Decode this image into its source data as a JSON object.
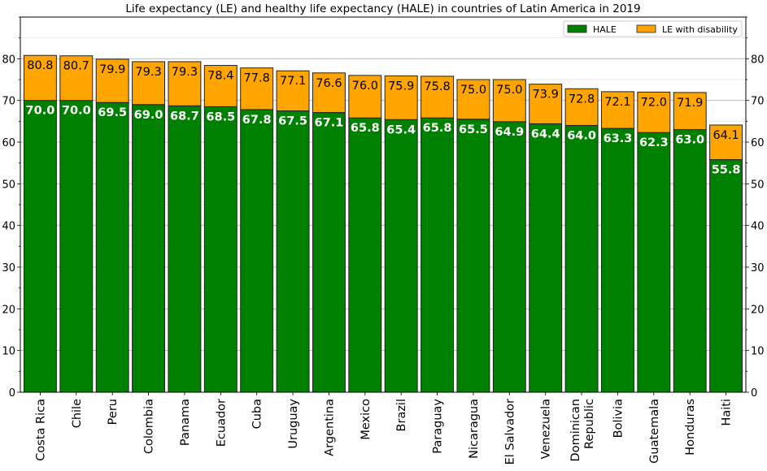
{
  "chart_data": {
    "type": "bar",
    "stacked": true,
    "title": "Life expectancy (LE) and healthy life expectancy (HALE) in countries of Latin America in 2019",
    "xlabel": "",
    "ylabel": "",
    "ylim": [
      0,
      90
    ],
    "yticks": [
      0,
      10,
      20,
      30,
      40,
      50,
      60,
      70,
      80
    ],
    "yticks_minor_step": 5,
    "grid": true,
    "legend": {
      "placement": "top-right",
      "entries": [
        "HALE",
        "LE with disability"
      ]
    },
    "categories": [
      "Costa Rica",
      "Chile",
      "Peru",
      "Colombia",
      "Panama",
      "Ecuador",
      "Cuba",
      "Uruguay",
      "Argentina",
      "Mexico",
      "Brazil",
      "Paraguay",
      "Nicaragua",
      "El Salvador",
      "Venezuela",
      "Dominican\nRepublic",
      "Bolivia",
      "Guatemala",
      "Honduras",
      "Haiti"
    ],
    "series": [
      {
        "name": "HALE",
        "color": "#008000",
        "values": [
          70.0,
          70.0,
          69.5,
          69.0,
          68.7,
          68.5,
          67.8,
          67.5,
          67.1,
          65.8,
          65.4,
          65.8,
          65.5,
          64.9,
          64.4,
          64.0,
          63.3,
          62.3,
          63.0,
          55.8
        ]
      },
      {
        "name": "LE with disability",
        "color": "#FFA500",
        "total_le": [
          80.8,
          80.7,
          79.9,
          79.3,
          79.3,
          78.4,
          77.8,
          77.1,
          76.6,
          76.0,
          75.9,
          75.8,
          75.0,
          75.0,
          73.9,
          72.8,
          72.1,
          72.0,
          71.9,
          64.1
        ]
      }
    ]
  }
}
